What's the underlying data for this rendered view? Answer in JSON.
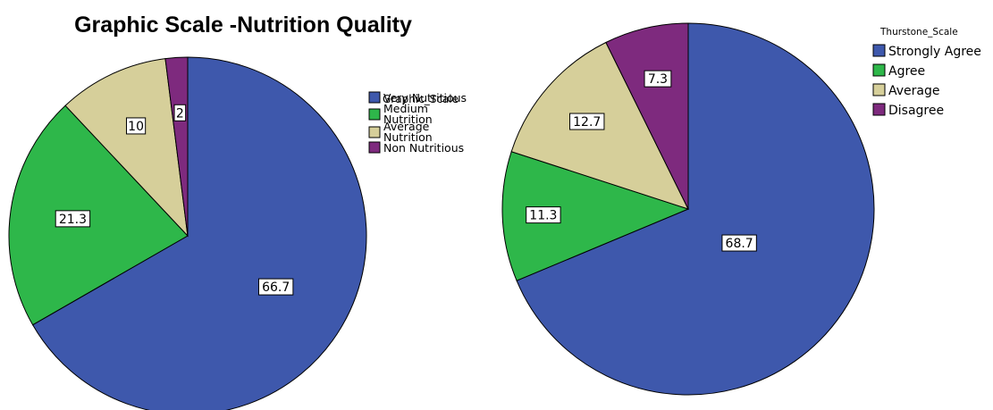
{
  "chart_data": [
    {
      "type": "pie",
      "title": "Graphic Scale -Nutrition Quality",
      "legend_title": "Graphic_Scale",
      "legend_position": "right",
      "categories": [
        "Very Nutritious",
        "Medium Nutrition",
        "Average Nutrition",
        "Non Nutritious"
      ],
      "legend_lines": [
        [
          "Very Nutritious"
        ],
        [
          "Medium",
          "Nutrition"
        ],
        [
          "Average",
          "Nutrition"
        ],
        [
          "Non Nutritious"
        ]
      ],
      "values": [
        66.7,
        21.3,
        10,
        2
      ],
      "labels": [
        "66.7",
        "21.3",
        "10",
        "2"
      ],
      "colors": [
        "#3e58ac",
        "#2eb74a",
        "#d6cf9a",
        "#7e2a7e"
      ]
    },
    {
      "type": "pie",
      "title": "",
      "legend_title": "Thurstone_Scale",
      "legend_position": "right",
      "categories": [
        "Strongly Agree",
        "Agree",
        "Average",
        "Disagree"
      ],
      "legend_lines": [
        [
          "Strongly Agree"
        ],
        [
          "Agree"
        ],
        [
          "Average"
        ],
        [
          "Disagree"
        ]
      ],
      "values": [
        68.7,
        11.3,
        12.7,
        7.3
      ],
      "labels": [
        "68.7",
        "11.3",
        "12.7",
        "7.3"
      ],
      "colors": [
        "#3e58ac",
        "#2eb74a",
        "#d6cf9a",
        "#7e2a7e"
      ]
    }
  ]
}
